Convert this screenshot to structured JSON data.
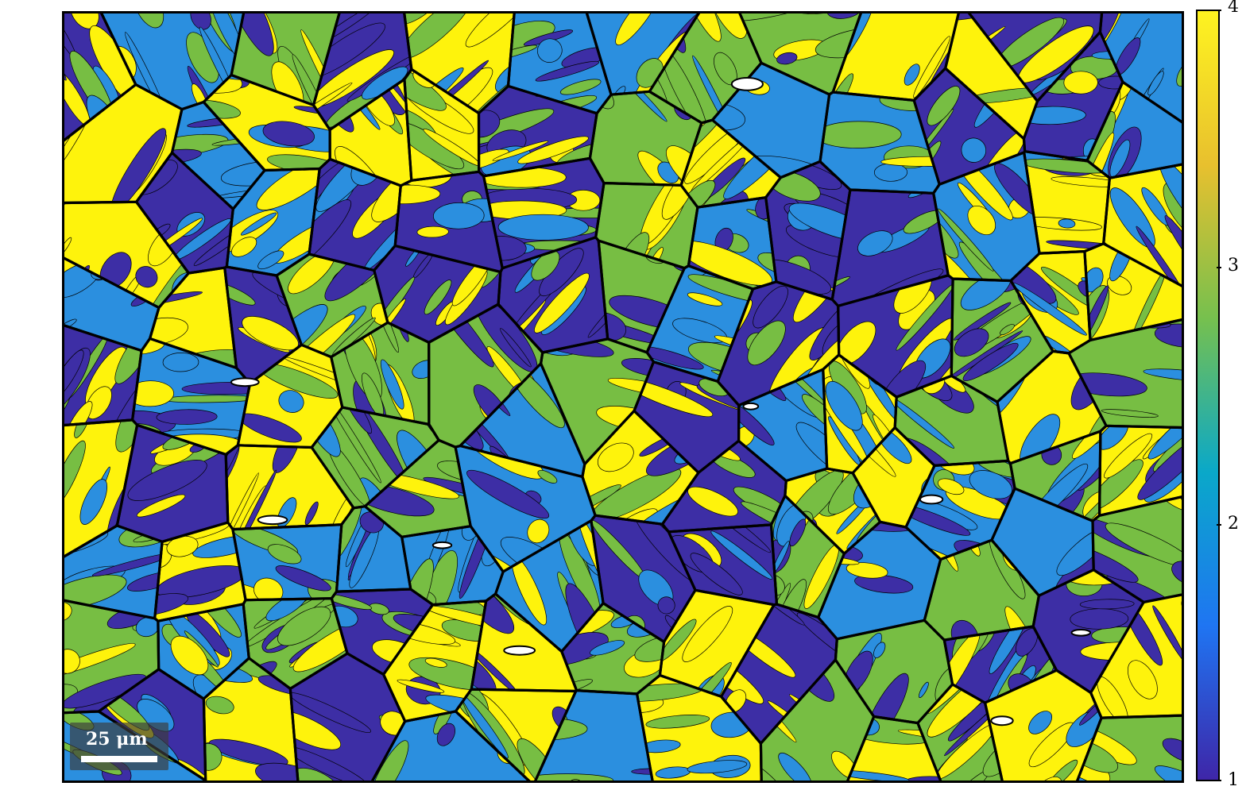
{
  "colormap": {
    "stops": [
      "#3e26a8",
      "#1f75f2",
      "#0aa8c9",
      "#76c04e",
      "#e8c02e",
      "#fef320"
    ],
    "phase_colors": [
      "#3d2ea5",
      "#2b8fdf",
      "#77be43",
      "#fef30c"
    ]
  },
  "colorbar": {
    "min": 1,
    "max": 4,
    "ticks": [
      {
        "value": 1,
        "label": "1"
      },
      {
        "value": 2,
        "label": "2"
      },
      {
        "value": 3,
        "label": "3"
      },
      {
        "value": 4,
        "label": "4"
      }
    ]
  },
  "scalebar": {
    "label": "25 μm"
  },
  "boundary_color": "#000000"
}
